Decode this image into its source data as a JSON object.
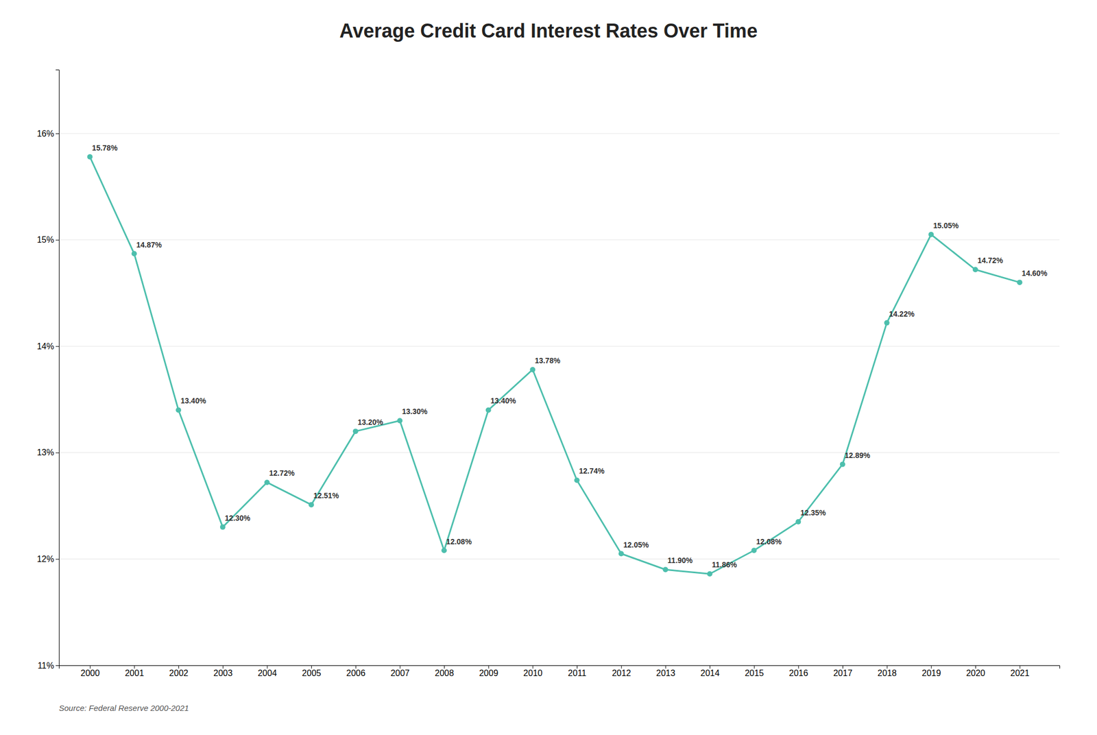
{
  "chart_data": {
    "type": "line",
    "title": "Average Credit Card Interest Rates Over Time",
    "annotations": [
      "Source: Federal Reserve 2000-2021"
    ],
    "x": [
      2000,
      2001,
      2002,
      2003,
      2004,
      2005,
      2006,
      2007,
      2008,
      2009,
      2010,
      2011,
      2012,
      2013,
      2014,
      2015,
      2016,
      2017,
      2018,
      2019,
      2020,
      2021
    ],
    "values": [
      15.78,
      14.87,
      13.4,
      12.3,
      12.72,
      12.51,
      13.2,
      13.3,
      12.08,
      13.4,
      13.78,
      12.74,
      12.05,
      11.9,
      11.86,
      12.08,
      12.35,
      12.89,
      14.22,
      15.05,
      14.72,
      14.6
    ],
    "value_labels": [
      "15.78%",
      "14.87%",
      "13.40%",
      "12.30%",
      "12.72%",
      "12.51%",
      "13.20%",
      "13.30%",
      "12.08%",
      "13.40%",
      "13.78%",
      "12.74%",
      "12.05%",
      "11.90%",
      "11.86%",
      "12.08%",
      "12.35%",
      "12.89%",
      "14.22%",
      "15.05%",
      "14.72%",
      "14.60%"
    ],
    "color": "#4dbfad",
    "marker": "circle",
    "data_labels": true,
    "grid": true,
    "xlim": [
      1999.3,
      2021.9
    ],
    "xticks": [
      2000,
      2001,
      2002,
      2003,
      2004,
      2005,
      2006,
      2007,
      2008,
      2009,
      2010,
      2011,
      2012,
      2013,
      2014,
      2015,
      2016,
      2017,
      2018,
      2019,
      2020,
      2021
    ],
    "ylim": [
      11.0,
      16.6
    ],
    "yticks": [
      {
        "value": 11,
        "label": "11%"
      },
      {
        "value": 12,
        "label": "12%"
      },
      {
        "value": 13,
        "label": "13%"
      },
      {
        "value": 14,
        "label": "14%"
      },
      {
        "value": 15,
        "label": "15%"
      },
      {
        "value": 16,
        "label": "16%"
      }
    ]
  }
}
